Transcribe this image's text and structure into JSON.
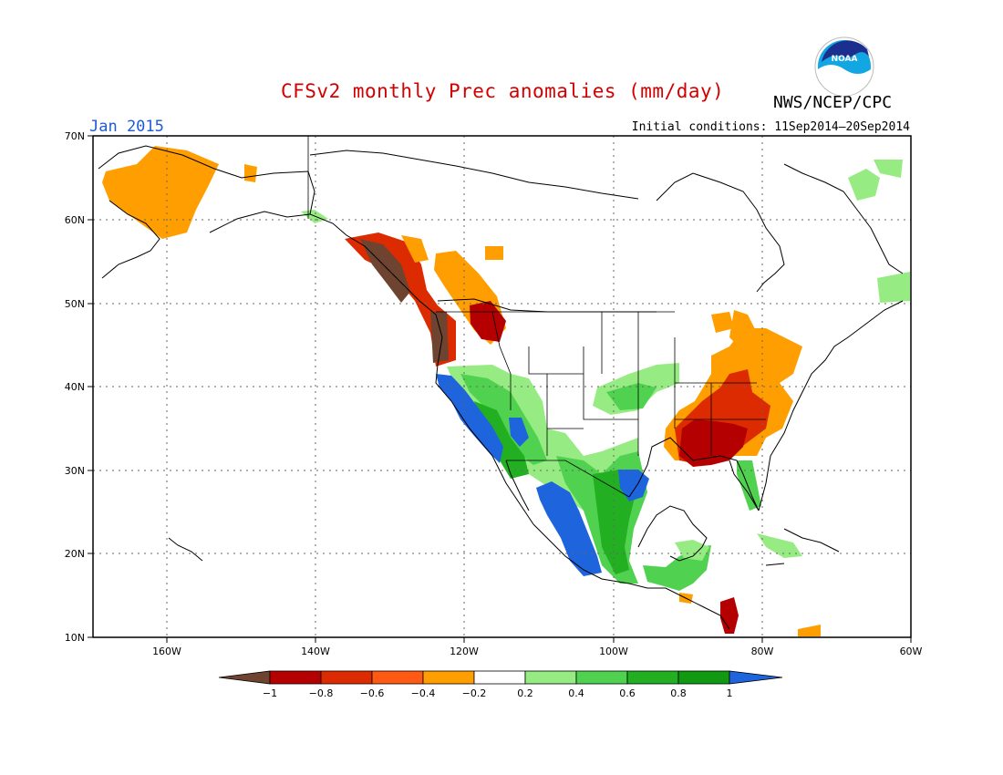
{
  "header": {
    "title": "CFSv2 monthly Prec anomalies (mm/day)",
    "agency": "NWS/NCEP/CPC",
    "logo_text": "NOAA",
    "month": "Jan 2015",
    "initial_conditions": "Initial conditions: 11Sep2014–20Sep2014"
  },
  "axes": {
    "lat_labels": [
      "70N",
      "60N",
      "50N",
      "40N",
      "30N",
      "20N",
      "10N"
    ],
    "lon_labels": [
      "160W",
      "140W",
      "120W",
      "100W",
      "80W",
      "60W"
    ]
  },
  "legend": {
    "labels": [
      "−1",
      "−0.8",
      "−0.6",
      "−0.4",
      "−0.2",
      "0.2",
      "0.4",
      "0.6",
      "0.8",
      "1"
    ],
    "colors": [
      "#6e4430",
      "#b40000",
      "#dc2b00",
      "#ff5a14",
      "#ff9e00",
      "#ffffff",
      "#96ec82",
      "#50d250",
      "#22b022",
      "#119a11",
      "#1e64dc"
    ]
  },
  "map": {
    "lat_range": [
      10,
      70
    ],
    "lon_range": [
      -170,
      -60
    ],
    "anomaly_regions": [
      {
        "name": "alaska-west-dry",
        "color": "#ff9e00"
      },
      {
        "name": "alaska-north-dry",
        "color": "#ff9e00"
      },
      {
        "name": "pacific-nw-very-dry",
        "color": "#6e4430"
      },
      {
        "name": "bc-coast-dry",
        "color": "#dc2b00"
      },
      {
        "name": "bc-interior-dry",
        "color": "#ff9e00"
      },
      {
        "name": "rockies-dry",
        "color": "#b40000"
      },
      {
        "name": "california-wet",
        "color": "#1e64dc"
      },
      {
        "name": "mexico-west-wet",
        "color": "#1e64dc"
      },
      {
        "name": "texas-wet",
        "color": "#1e64dc"
      },
      {
        "name": "southwest-wet",
        "color": "#22b022"
      },
      {
        "name": "plains-wet",
        "color": "#96ec82"
      },
      {
        "name": "southeast-very-dry",
        "color": "#b40000"
      },
      {
        "name": "ohio-valley-dry",
        "color": "#dc2b00"
      },
      {
        "name": "northeast-dry",
        "color": "#ff9e00"
      },
      {
        "name": "florida-wet",
        "color": "#50d250"
      },
      {
        "name": "caribbean-wet",
        "color": "#96ec82"
      },
      {
        "name": "labrador-wet",
        "color": "#96ec82"
      },
      {
        "name": "central-america-wet",
        "color": "#50d250"
      }
    ]
  }
}
